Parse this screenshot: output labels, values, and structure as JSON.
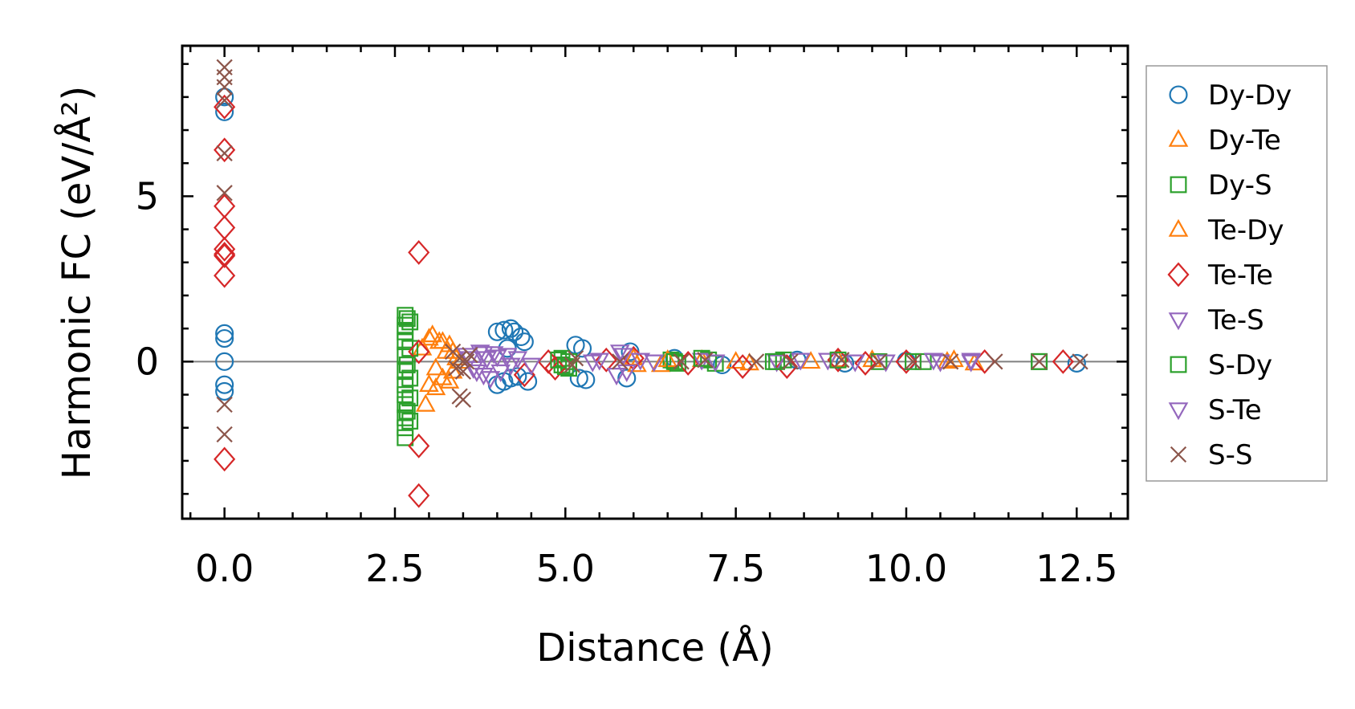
{
  "chart_data": {
    "type": "scatter",
    "xlabel": "Distance (Å)",
    "ylabel": "Harmonic FC (eV/Å²)",
    "xlim": [
      -0.62,
      13.25
    ],
    "ylim": [
      -4.75,
      9.55
    ],
    "xticks": [
      0.0,
      2.5,
      5.0,
      7.5,
      10.0,
      12.5
    ],
    "xtick_labels": [
      "0.0",
      "2.5",
      "5.0",
      "7.5",
      "10.0",
      "12.5"
    ],
    "yticks": [
      0,
      5
    ],
    "ytick_labels": [
      "0",
      "5"
    ],
    "grid": false,
    "zero_line": true,
    "legend_position": "outside-right",
    "series": [
      {
        "name": "Dy-Dy",
        "marker": "circle",
        "color": "#1f77b4",
        "points": [
          [
            0,
            8.0
          ],
          [
            0,
            7.55
          ],
          [
            0,
            0.85
          ],
          [
            0,
            0.7
          ],
          [
            0,
            0.0
          ],
          [
            0,
            -0.7
          ],
          [
            0,
            -0.9
          ],
          [
            4.0,
            0.9
          ],
          [
            4.1,
            0.95
          ],
          [
            4.2,
            1.0
          ],
          [
            4.25,
            0.9
          ],
          [
            4.35,
            0.75
          ],
          [
            4.4,
            0.6
          ],
          [
            4.0,
            -0.7
          ],
          [
            4.1,
            -0.6
          ],
          [
            4.2,
            -0.5
          ],
          [
            4.3,
            -0.45
          ],
          [
            4.45,
            -0.6
          ],
          [
            4.15,
            0.4
          ],
          [
            5.15,
            0.5
          ],
          [
            5.25,
            0.4
          ],
          [
            5.2,
            -0.5
          ],
          [
            5.3,
            -0.55
          ],
          [
            5.9,
            -0.5
          ],
          [
            5.95,
            0.3
          ],
          [
            6.6,
            0.1
          ],
          [
            7.3,
            -0.1
          ],
          [
            8.4,
            0.05
          ],
          [
            9.1,
            -0.05
          ],
          [
            10.0,
            0.02
          ],
          [
            12.5,
            -0.05
          ]
        ]
      },
      {
        "name": "Dy-Te",
        "marker": "triangle-up",
        "color": "#ff7f0e",
        "points": [
          [
            2.9,
            0.4
          ],
          [
            3.0,
            -0.7
          ],
          [
            3.05,
            0.8
          ],
          [
            3.1,
            -0.2
          ],
          [
            3.15,
            0.6
          ],
          [
            3.2,
            -0.5
          ],
          [
            3.25,
            0.3
          ],
          [
            3.3,
            0.5
          ],
          [
            3.35,
            -0.3
          ],
          [
            3.4,
            0.1
          ],
          [
            6.0,
            0.1
          ],
          [
            6.4,
            -0.1
          ],
          [
            7.0,
            0.05
          ],
          [
            7.7,
            -0.05
          ],
          [
            8.6,
            0.0
          ],
          [
            9.5,
            0.05
          ],
          [
            10.6,
            0.0
          ],
          [
            11.0,
            -0.05
          ]
        ]
      },
      {
        "name": "Dy-S",
        "marker": "square",
        "color": "#2ca02c",
        "points": [
          [
            2.65,
            1.4
          ],
          [
            2.65,
            1.1
          ],
          [
            2.65,
            0.9
          ],
          [
            2.65,
            0.6
          ],
          [
            2.65,
            0.2
          ],
          [
            2.65,
            -0.3
          ],
          [
            2.65,
            -0.7
          ],
          [
            2.65,
            -1.0
          ],
          [
            2.65,
            -1.3
          ],
          [
            2.65,
            -1.7
          ],
          [
            2.65,
            -2.0
          ],
          [
            2.65,
            -2.3
          ],
          [
            2.72,
            1.2
          ],
          [
            2.72,
            0.4
          ],
          [
            2.72,
            -0.5
          ],
          [
            2.72,
            -1.1
          ],
          [
            2.72,
            -1.8
          ],
          [
            4.95,
            0.1
          ],
          [
            4.95,
            -0.1
          ],
          [
            5.05,
            0.0
          ],
          [
            5.05,
            -0.2
          ],
          [
            6.55,
            0.05
          ],
          [
            6.65,
            -0.05
          ],
          [
            7.1,
            0.05
          ],
          [
            7.2,
            -0.05
          ],
          [
            8.05,
            0.0
          ],
          [
            8.2,
            0.05
          ],
          [
            9.6,
            0.0
          ],
          [
            10.25,
            0.0
          ],
          [
            11.95,
            0.0
          ]
        ]
      },
      {
        "name": "Te-Dy",
        "marker": "triangle-up",
        "color": "#ff7f0e",
        "points": [
          [
            2.95,
            -1.3
          ],
          [
            3.0,
            0.7
          ],
          [
            3.1,
            -0.8
          ],
          [
            3.2,
            0.6
          ],
          [
            3.3,
            -0.6
          ],
          [
            3.35,
            0.3
          ],
          [
            3.45,
            0.0
          ],
          [
            6.05,
            -0.1
          ],
          [
            6.5,
            0.05
          ],
          [
            7.5,
            0.0
          ],
          [
            9.0,
            0.05
          ],
          [
            10.7,
            0.05
          ]
        ]
      },
      {
        "name": "Te-Te",
        "marker": "diamond",
        "color": "#d62728",
        "points": [
          [
            0,
            7.7
          ],
          [
            0,
            6.4
          ],
          [
            0,
            4.7
          ],
          [
            0,
            4.05
          ],
          [
            0,
            3.4
          ],
          [
            0,
            3.25
          ],
          [
            0,
            3.2
          ],
          [
            0,
            2.6
          ],
          [
            0,
            -2.95
          ],
          [
            2.85,
            3.3
          ],
          [
            2.85,
            0.3
          ],
          [
            2.85,
            -2.55
          ],
          [
            2.85,
            -4.05
          ],
          [
            4.4,
            -0.4
          ],
          [
            4.75,
            0.0
          ],
          [
            4.85,
            -0.2
          ],
          [
            5.6,
            0.05
          ],
          [
            6.0,
            0.1
          ],
          [
            6.8,
            -0.05
          ],
          [
            7.6,
            -0.15
          ],
          [
            8.25,
            -0.15
          ],
          [
            9.0,
            0.05
          ],
          [
            9.4,
            -0.05
          ],
          [
            10.0,
            0.0
          ],
          [
            11.15,
            0.0
          ],
          [
            12.3,
            0.0
          ]
        ]
      },
      {
        "name": "Te-S",
        "marker": "triangle-down",
        "color": "#9467bd",
        "points": [
          [
            3.55,
            0.2
          ],
          [
            3.65,
            -0.2
          ],
          [
            3.75,
            0.3
          ],
          [
            3.8,
            -0.4
          ],
          [
            3.85,
            0.1
          ],
          [
            3.95,
            0.25
          ],
          [
            4.05,
            -0.3
          ],
          [
            4.15,
            0.2
          ],
          [
            4.3,
            0.1
          ],
          [
            4.5,
            -0.1
          ],
          [
            5.4,
            0.0
          ],
          [
            5.75,
            -0.4
          ],
          [
            5.85,
            0.2
          ],
          [
            6.1,
            0.05
          ],
          [
            7.0,
            0.05
          ],
          [
            8.1,
            0.0
          ],
          [
            8.85,
            0.05
          ],
          [
            9.7,
            0.0
          ],
          [
            10.4,
            0.05
          ],
          [
            10.95,
            0.0
          ]
        ]
      },
      {
        "name": "S-Dy",
        "marker": "square",
        "color": "#2ca02c",
        "points": [
          [
            2.68,
            1.3
          ],
          [
            2.68,
            -0.1
          ],
          [
            2.68,
            -1.5
          ],
          [
            4.9,
            0.05
          ],
          [
            5.0,
            -0.15
          ],
          [
            6.6,
            0.0
          ],
          [
            7.0,
            0.1
          ],
          [
            8.1,
            0.0
          ],
          [
            9.0,
            0.05
          ],
          [
            10.1,
            0.0
          ],
          [
            11.95,
            0.0
          ]
        ]
      },
      {
        "name": "S-Te",
        "marker": "triangle-down",
        "color": "#9467bd",
        "points": [
          [
            3.6,
            0.1
          ],
          [
            3.7,
            -0.3
          ],
          [
            3.8,
            0.25
          ],
          [
            3.9,
            -0.5
          ],
          [
            4.0,
            0.15
          ],
          [
            4.2,
            -0.1
          ],
          [
            5.5,
            0.05
          ],
          [
            5.8,
            0.3
          ],
          [
            5.9,
            -0.3
          ],
          [
            6.3,
            0.0
          ],
          [
            7.2,
            0.0
          ],
          [
            8.45,
            0.05
          ],
          [
            9.25,
            0.0
          ],
          [
            10.5,
            0.0
          ],
          [
            10.95,
            0.05
          ]
        ]
      },
      {
        "name": "S-S",
        "marker": "x",
        "color": "#8c564b",
        "points": [
          [
            0,
            8.9
          ],
          [
            0,
            8.6
          ],
          [
            0,
            8.3
          ],
          [
            0,
            7.9
          ],
          [
            0,
            6.3
          ],
          [
            0,
            5.1
          ],
          [
            0,
            -1.3
          ],
          [
            0,
            -2.2
          ],
          [
            3.35,
            0.3
          ],
          [
            3.4,
            -0.2
          ],
          [
            3.45,
            0.1
          ],
          [
            3.5,
            -0.3
          ],
          [
            3.45,
            -1.05
          ],
          [
            3.5,
            -1.15
          ],
          [
            3.55,
            0.0
          ],
          [
            3.6,
            0.2
          ],
          [
            5.1,
            -0.1
          ],
          [
            5.15,
            0.1
          ],
          [
            5.8,
            0.0
          ],
          [
            6.7,
            0.0
          ],
          [
            7.05,
            0.05
          ],
          [
            7.8,
            0.0
          ],
          [
            8.3,
            0.0
          ],
          [
            9.05,
            0.05
          ],
          [
            9.6,
            0.0
          ],
          [
            10.1,
            0.0
          ],
          [
            10.65,
            0.0
          ],
          [
            11.3,
            0.0
          ],
          [
            11.95,
            0.0
          ],
          [
            12.55,
            0.0
          ]
        ]
      }
    ]
  }
}
